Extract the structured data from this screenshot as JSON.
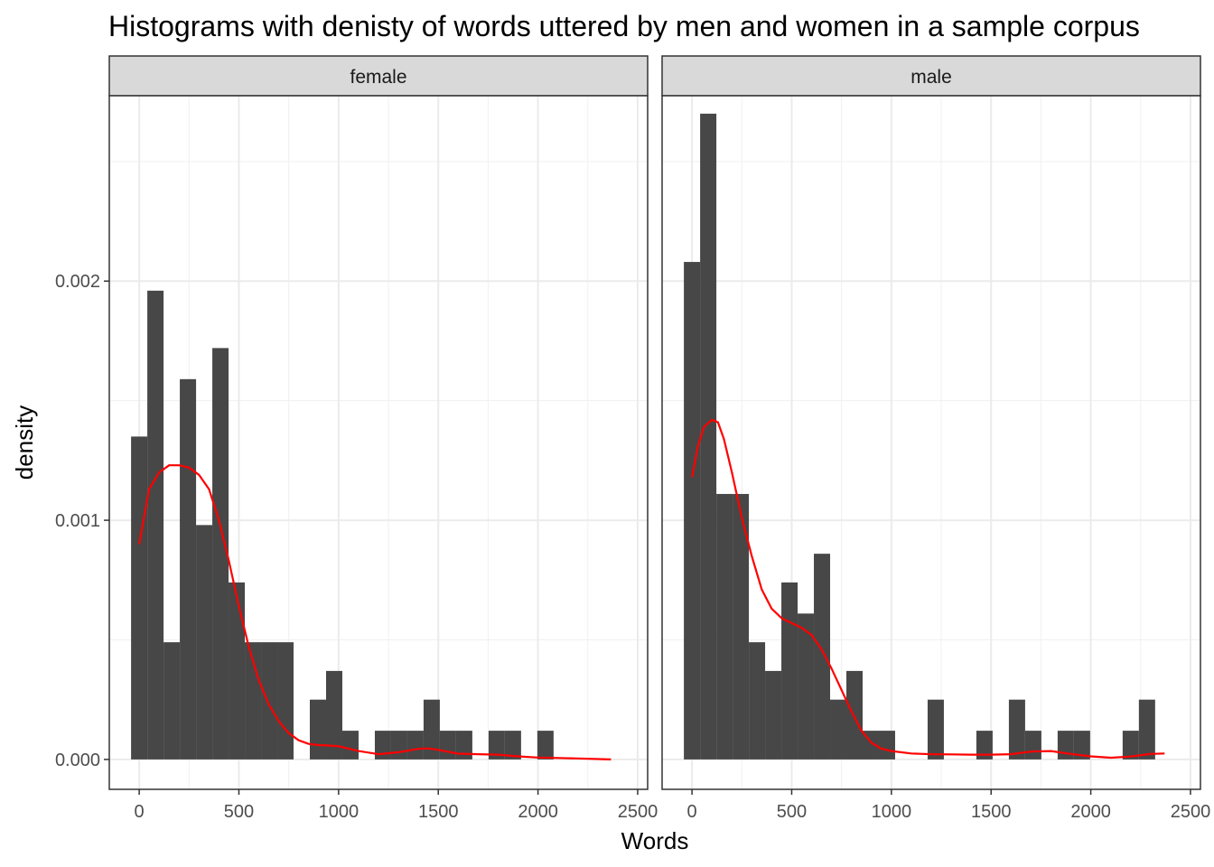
{
  "chart_data": {
    "type": "histogram",
    "title": "Histograms with denisty of words uttered by men and women in a sample corpus",
    "xlabel": "Words",
    "ylabel": "density",
    "xlim": [
      -150,
      2550
    ],
    "ylim": [
      -0.000125,
      0.002775
    ],
    "x_ticks": [
      0,
      500,
      1000,
      1500,
      2000,
      2500
    ],
    "x_tick_labels": [
      "0",
      "500",
      "1000",
      "1500",
      "2000",
      "2500"
    ],
    "y_ticks": [
      0,
      0.001,
      0.002
    ],
    "y_tick_labels": [
      "0.000",
      "0.001",
      "0.002"
    ],
    "bin_width": 81.5,
    "bin_start": -40.8,
    "bar_color": "#474747",
    "density_color": "#ff0000",
    "panels": [
      {
        "label": "female",
        "bin_densities": [
          0.00135,
          0.00196,
          0.00049,
          0.00159,
          0.00098,
          0.00172,
          0.00074,
          0.00049,
          0.00049,
          0.00049,
          0.0,
          0.00025,
          0.00037,
          0.00012,
          0.0,
          0.00012,
          0.00012,
          0.00012,
          0.00025,
          0.00012,
          0.00012,
          0.0,
          0.00012,
          0.00012,
          0.0,
          0.00012
        ],
        "density_curve": {
          "x": [
            0,
            50,
            100,
            150,
            200,
            250,
            300,
            350,
            400,
            450,
            500,
            550,
            600,
            650,
            700,
            750,
            800,
            850,
            900,
            950,
            1000,
            1100,
            1200,
            1300,
            1400,
            1450,
            1500,
            1600,
            1700,
            1800,
            1900,
            2000,
            2100,
            2200,
            2366
          ],
          "y": [
            0.0009,
            0.00113,
            0.0012,
            0.00123,
            0.00123,
            0.00122,
            0.00119,
            0.00113,
            0.001,
            0.00083,
            0.00064,
            0.00047,
            0.00033,
            0.00023,
            0.00016,
            0.00011,
            8e-05,
            6.5e-05,
            6e-05,
            5.8e-05,
            5.5e-05,
            3.5e-05,
            2.2e-05,
            3e-05,
            4.4e-05,
            4.6e-05,
            4e-05,
            2.4e-05,
            2.2e-05,
            2e-05,
            1.3e-05,
            8e-06,
            6e-06,
            4e-06,
            0.0
          ]
        }
      },
      {
        "label": "male",
        "bin_densities": [
          0.00208,
          0.0027,
          0.00111,
          0.00111,
          0.00049,
          0.00037,
          0.00074,
          0.00061,
          0.00086,
          0.00025,
          0.00037,
          0.00012,
          0.00012,
          0.0,
          0.0,
          0.00025,
          0.0,
          0.0,
          0.00012,
          0.0,
          0.00025,
          0.00012,
          0.0,
          0.00012,
          0.00012,
          0.0,
          0.0,
          0.00012,
          0.00025
        ],
        "density_curve": {
          "x": [
            0,
            30,
            60,
            100,
            130,
            160,
            200,
            250,
            300,
            350,
            400,
            450,
            500,
            550,
            600,
            650,
            700,
            750,
            800,
            850,
            900,
            950,
            1000,
            1100,
            1200,
            1300,
            1400,
            1500,
            1600,
            1700,
            1800,
            1900,
            2000,
            2100,
            2200,
            2300,
            2370
          ],
          "y": [
            0.00118,
            0.00131,
            0.00139,
            0.00142,
            0.00141,
            0.00134,
            0.0012,
            0.00101,
            0.00085,
            0.00071,
            0.00063,
            0.00059,
            0.00057,
            0.00055,
            0.00052,
            0.00046,
            0.00038,
            0.00029,
            0.0002,
            0.00012,
            7e-05,
            4.5e-05,
            3.5e-05,
            2.5e-05,
            2.2e-05,
            2.1e-05,
            2e-05,
            2e-05,
            2.2e-05,
            3.3e-05,
            3.5e-05,
            2.3e-05,
            1.3e-05,
            7e-06,
            1.2e-05,
            2.3e-05,
            2.5e-05
          ]
        }
      }
    ]
  }
}
